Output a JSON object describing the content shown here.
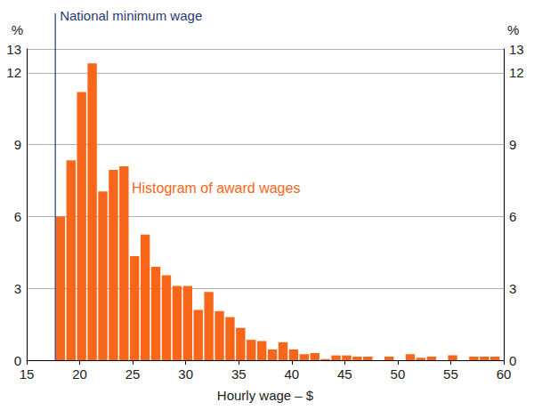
{
  "chart_data": {
    "type": "histogram",
    "xlabel": "Hourly wage – $",
    "ylabel": "%",
    "bins": [
      17.7,
      18.7,
      19.7,
      20.7,
      21.7,
      22.7,
      23.7,
      24.7,
      25.7,
      26.7,
      27.7,
      28.7,
      29.7,
      30.7,
      31.7,
      32.7,
      33.7,
      34.7,
      35.7,
      36.7,
      37.7,
      38.7,
      39.7,
      40.7,
      41.7,
      42.7,
      43.7,
      44.7,
      45.7,
      46.7,
      47.7,
      48.7,
      49.7,
      50.7,
      51.7,
      52.7,
      53.7,
      54.7,
      55.7,
      56.7,
      57.7,
      58.7,
      59.7
    ],
    "series": [
      {
        "name": "Histogram of award wages",
        "color": "#f8661a",
        "values": [
          6.0,
          8.35,
          11.2,
          12.4,
          7.05,
          7.95,
          8.1,
          4.35,
          5.25,
          3.9,
          3.55,
          3.1,
          3.1,
          2.1,
          2.85,
          2.05,
          1.8,
          1.35,
          0.85,
          0.8,
          0.45,
          0.75,
          0.45,
          0.25,
          0.3,
          0.05,
          0.2,
          0.2,
          0.15,
          0.15,
          0,
          0.15,
          0,
          0.25,
          0.1,
          0.15,
          0,
          0.2,
          0,
          0.15,
          0.15,
          0.15
        ]
      }
    ],
    "annotations": [
      {
        "text": "National minimum wage",
        "x": 17.7,
        "color": "#1f3b73"
      }
    ],
    "xlim": [
      15,
      60
    ],
    "xticks": [
      15,
      20,
      25,
      30,
      35,
      40,
      45,
      50,
      55,
      60
    ],
    "ylim": [
      0,
      13
    ],
    "yticks": [
      0,
      3,
      6,
      9,
      12
    ],
    "grid": true
  }
}
